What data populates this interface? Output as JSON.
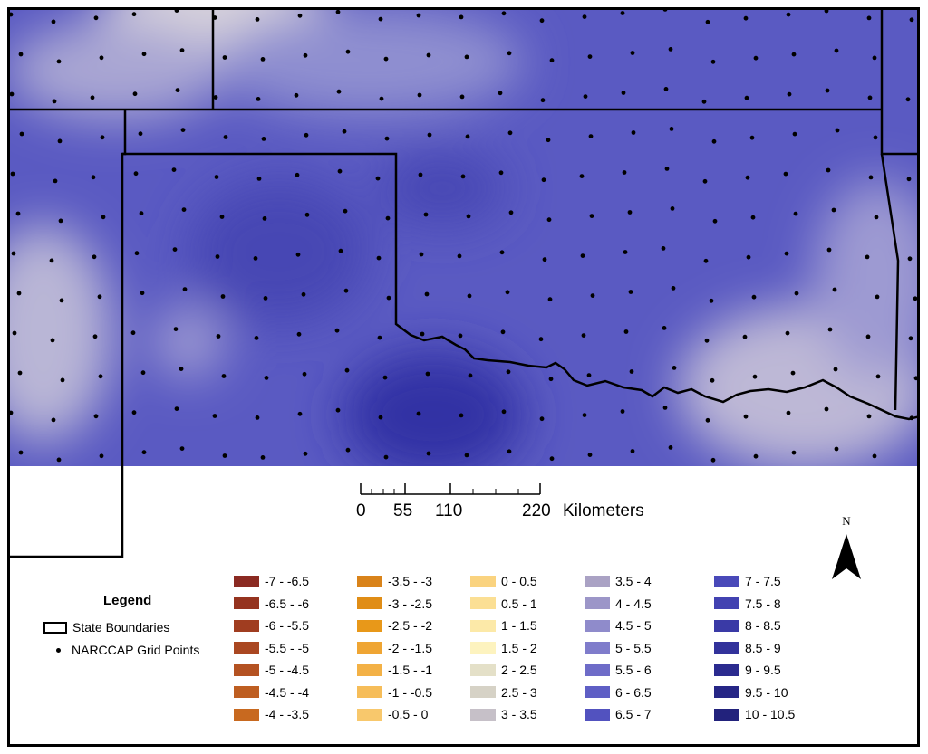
{
  "map": {
    "field_colors": {
      "light": "#d8d3dc",
      "mid": "#8f8fd0",
      "base": "#5a5ac2",
      "dark": "#3232a4"
    },
    "boundary_color": "#000000",
    "grid_point_color": "#000000"
  },
  "scale_bar": {
    "ticks": [
      "0",
      "55",
      "110",
      "220"
    ],
    "units": "Kilometers"
  },
  "north_arrow": {
    "label": "N"
  },
  "legend": {
    "title": "Legend",
    "state_boundaries": "State Boundaries",
    "grid_points": "NARCCAP Grid Points"
  },
  "classes": [
    [
      {
        "label": "-7 - -6.5",
        "color": "#8b2a22"
      },
      {
        "label": "-6.5 - -6",
        "color": "#95331f"
      },
      {
        "label": "-6 - -5.5",
        "color": "#a03d20"
      },
      {
        "label": "-5.5 - -5",
        "color": "#aa4721"
      },
      {
        "label": "-5 - -4.5",
        "color": "#b45222"
      },
      {
        "label": "-4.5 - -4",
        "color": "#be5e21"
      },
      {
        "label": "-4 - -3.5",
        "color": "#c8691f"
      }
    ],
    [
      {
        "label": "-3.5 - -3",
        "color": "#d9831a"
      },
      {
        "label": "-3 - -2.5",
        "color": "#e08d16"
      },
      {
        "label": "-2.5 - -2",
        "color": "#e89819"
      },
      {
        "label": "-2 - -1.5",
        "color": "#efa533"
      },
      {
        "label": "-1.5 - -1",
        "color": "#f3b146"
      },
      {
        "label": "-1 - -0.5",
        "color": "#f6bd59"
      },
      {
        "label": "-0.5 - 0",
        "color": "#f8c86c"
      }
    ],
    [
      {
        "label": "0 - 0.5",
        "color": "#fad37f"
      },
      {
        "label": "0.5 - 1",
        "color": "#fbdf94"
      },
      {
        "label": "1 - 1.5",
        "color": "#fce9a8"
      },
      {
        "label": "1.5 - 2",
        "color": "#fdf3bf"
      },
      {
        "label": "2 - 2.5",
        "color": "#e4e0c8"
      },
      {
        "label": "2.5 - 3",
        "color": "#d6d2c6"
      },
      {
        "label": "3 - 3.5",
        "color": "#c6c0c8"
      }
    ],
    [
      {
        "label": "3.5 - 4",
        "color": "#aaa2c4"
      },
      {
        "label": "4 - 4.5",
        "color": "#9c96c8"
      },
      {
        "label": "4.5 - 5",
        "color": "#8f8bcb"
      },
      {
        "label": "5 - 5.5",
        "color": "#7f7ccb"
      },
      {
        "label": "5.5 - 6",
        "color": "#6e6cc8"
      },
      {
        "label": "6 - 6.5",
        "color": "#5f5fc5"
      },
      {
        "label": "6.5 - 7",
        "color": "#5252bf"
      }
    ],
    [
      {
        "label": "7 - 7.5",
        "color": "#4949b9"
      },
      {
        "label": "7.5 - 8",
        "color": "#4242b1"
      },
      {
        "label": "8 - 8.5",
        "color": "#3a3aa6"
      },
      {
        "label": "8.5 - 9",
        "color": "#32329b"
      },
      {
        "label": "9 - 9.5",
        "color": "#2b2b8f"
      },
      {
        "label": "9.5 - 10",
        "color": "#262686"
      },
      {
        "label": "10 - 10.5",
        "color": "#22227c"
      }
    ]
  ]
}
